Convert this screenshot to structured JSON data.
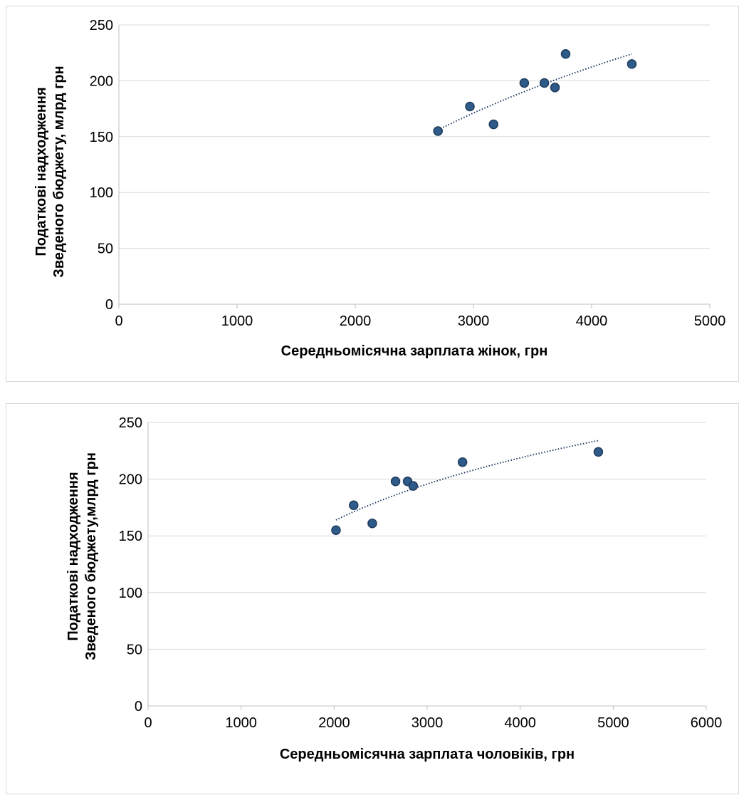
{
  "chart_data": [
    {
      "type": "scatter",
      "title": "",
      "xlabel": "Середньомісячна зарплата жінок, грн",
      "ylabel_lines": [
        "Податкові надходження",
        "Зведеного бюджету, млрд грн"
      ],
      "xlim": [
        0,
        5000
      ],
      "ylim": [
        0,
        250
      ],
      "xticks": [
        0,
        1000,
        2000,
        3000,
        4000,
        5000
      ],
      "yticks": [
        0,
        50,
        100,
        150,
        200,
        250
      ],
      "grid": "horizontal",
      "legend": "none",
      "points": [
        {
          "x": 2700,
          "y": 155
        },
        {
          "x": 2970,
          "y": 177
        },
        {
          "x": 3170,
          "y": 161
        },
        {
          "x": 3430,
          "y": 198
        },
        {
          "x": 3600,
          "y": 198
        },
        {
          "x": 3690,
          "y": 194
        },
        {
          "x": 3780,
          "y": 224
        },
        {
          "x": 4340,
          "y": 215
        }
      ],
      "trendline": {
        "style": "dotted",
        "type": "logarithmic",
        "x_range": [
          2700,
          4340
        ],
        "y_range": [
          156,
          224
        ]
      },
      "marker_color": "#2e5b8a",
      "marker_edge_color": "#1f3c5c",
      "trend_color": "#1f3864"
    },
    {
      "type": "scatter",
      "title": "",
      "xlabel": "Середньомісячна зарплата чоловіків, грн",
      "ylabel_lines": [
        "Податкові надходження",
        "Зведеного бюджету,млрд грн"
      ],
      "xlim": [
        0,
        6000
      ],
      "ylim": [
        0,
        250
      ],
      "xticks": [
        0,
        1000,
        2000,
        3000,
        4000,
        5000,
        6000
      ],
      "yticks": [
        0,
        50,
        100,
        150,
        200,
        250
      ],
      "grid": "horizontal",
      "legend": "none",
      "points": [
        {
          "x": 2020,
          "y": 155
        },
        {
          "x": 2210,
          "y": 177
        },
        {
          "x": 2410,
          "y": 161
        },
        {
          "x": 2660,
          "y": 198
        },
        {
          "x": 2790,
          "y": 198
        },
        {
          "x": 2850,
          "y": 194
        },
        {
          "x": 3380,
          "y": 215
        },
        {
          "x": 4840,
          "y": 224
        }
      ],
      "trendline": {
        "style": "dotted",
        "type": "logarithmic",
        "x_range": [
          2020,
          4840
        ],
        "y_range": [
          164,
          234
        ]
      },
      "marker_color": "#2e5b8a",
      "marker_edge_color": "#1f3c5c",
      "trend_color": "#1f3864"
    }
  ]
}
